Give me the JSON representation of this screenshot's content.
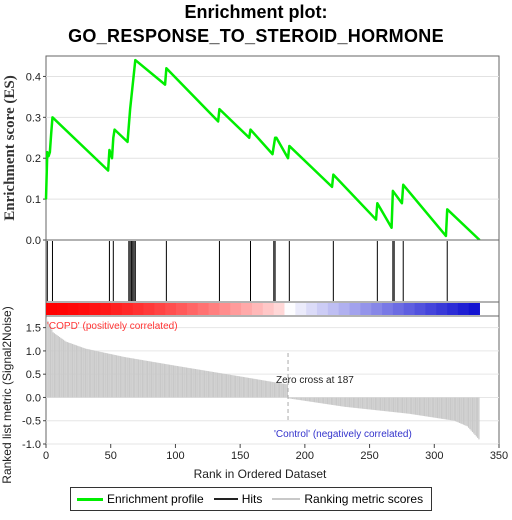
{
  "titles": {
    "line1": "Enrichment plot:",
    "line2": "GO_RESPONSE_TO_STEROID_HORMONE"
  },
  "chart_data": {
    "type": "line",
    "n_genes": 335,
    "colors": {
      "es_line": "#00ee00",
      "hits": "#000000",
      "metric_bars": "#c8c8c8",
      "positive": "#ff0000",
      "negative": "#0000dd"
    },
    "es_panel": {
      "ylabel": "Enrichment score (ES)",
      "ylim": [
        0,
        0.45
      ],
      "yticks": [
        "0.0",
        "0.1",
        "0.2",
        "0.3",
        "0.4"
      ],
      "grid": true,
      "x": [
        0,
        1,
        2,
        3,
        4,
        5,
        48,
        49,
        51,
        52,
        53,
        63,
        64,
        65,
        66,
        67,
        68,
        69,
        92,
        93,
        133,
        134,
        157,
        158,
        175,
        176,
        177,
        178,
        187,
        188,
        221,
        222,
        255,
        256,
        267,
        268,
        275,
        276,
        309,
        310,
        335
      ],
      "es": [
        0.1,
        0.215,
        0.205,
        0.215,
        0.26,
        0.3,
        0.17,
        0.22,
        0.2,
        0.25,
        0.27,
        0.24,
        0.28,
        0.32,
        0.35,
        0.38,
        0.41,
        0.44,
        0.38,
        0.42,
        0.29,
        0.32,
        0.25,
        0.27,
        0.21,
        0.23,
        0.25,
        0.25,
        0.2,
        0.23,
        0.13,
        0.16,
        0.05,
        0.09,
        0.03,
        0.12,
        0.09,
        0.135,
        0.01,
        0.075,
        0.0
      ]
    },
    "hits": [
      1,
      5,
      49,
      52,
      64,
      65,
      66,
      67,
      68,
      69,
      93,
      134,
      158,
      176,
      177,
      188,
      222,
      256,
      268,
      269,
      276,
      310
    ],
    "rank_panel": {
      "ylabel": "Ranked list metric (Signal2Noise)",
      "ylim": [
        -1.0,
        1.75
      ],
      "yticks": [
        "-1.0",
        "-0.5",
        "0.0",
        "0.5",
        "1.0",
        "1.5"
      ],
      "xlabel": "Rank in Ordered Dataset",
      "xticks": [
        "0",
        "50",
        "100",
        "150",
        "200",
        "250",
        "300",
        "350"
      ],
      "xlim": [
        0,
        350
      ],
      "metric_profile": {
        "rank": [
          0,
          5,
          15,
          30,
          60,
          100,
          150,
          186,
          187,
          230,
          280,
          315,
          325,
          334
        ],
        "value": [
          1.7,
          1.4,
          1.2,
          1.05,
          0.87,
          0.68,
          0.45,
          0.28,
          -0.02,
          -0.2,
          -0.35,
          -0.5,
          -0.62,
          -0.9
        ]
      },
      "zero_cross": "Zero cross at 187",
      "positive_label": "'COPD' (positively correlated)",
      "negative_label": "'Control' (negatively correlated)"
    },
    "legend": {
      "es_label": "Enrichment profile",
      "hits_label": "Hits",
      "metric_label": "Ranking metric scores"
    }
  }
}
